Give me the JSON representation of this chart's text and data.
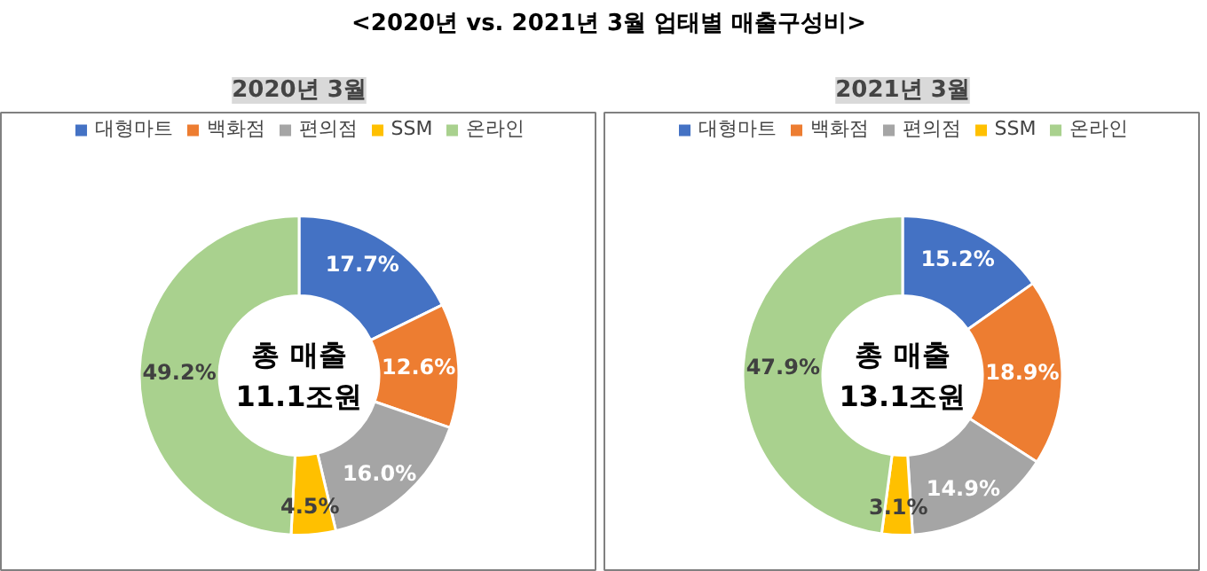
{
  "chart_data": [
    {
      "type": "donut",
      "title": "<2020년 vs. 2021년 3월 업태별 매출구성비>",
      "subtitle": "2020년 3월",
      "categories": [
        "대형마트",
        "백화점",
        "편의점",
        "SSM",
        "온라인"
      ],
      "values": [
        17.7,
        12.6,
        16.0,
        4.5,
        49.2
      ],
      "colors": [
        "#4472c4",
        "#ed7d31",
        "#a5a5a5",
        "#ffc000",
        "#a9d18e"
      ],
      "value_labels": [
        "17.7%",
        "12.6%",
        "16.0%",
        "4.5%",
        "49.2%"
      ],
      "annotations": [
        "총 매출\n11.1조원"
      ],
      "legend": "top"
    },
    {
      "type": "donut",
      "subtitle": "2021년 3월",
      "categories": [
        "대형마트",
        "백화점",
        "편의점",
        "SSM",
        "온라인"
      ],
      "values": [
        15.2,
        18.9,
        14.9,
        3.1,
        47.9
      ],
      "colors": [
        "#4472c4",
        "#ed7d31",
        "#a5a5a5",
        "#ffc000",
        "#a9d18e"
      ],
      "value_labels": [
        "15.2%",
        "18.9%",
        "14.9%",
        "3.1%",
        "47.9%"
      ],
      "annotations": [
        "총 매출\n13.1조원"
      ],
      "legend": "top"
    }
  ]
}
